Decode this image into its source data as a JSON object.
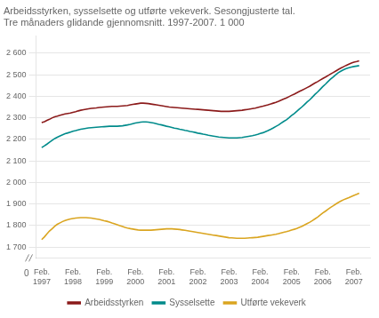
{
  "chart_data": {
    "type": "line",
    "title": [
      "Arbeidsstyrken, sysselsette og utførte vekeverk. Sesongjusterte tal.",
      "Tre månaders glidande gjennomsnitt. 1997-2007. 1 000"
    ],
    "annotations": [
      "0"
    ],
    "x": [
      1997.08,
      1997.17,
      1997.25,
      1997.33,
      1997.42,
      1997.5,
      1997.58,
      1997.67,
      1997.75,
      1997.83,
      1997.92,
      1998.0,
      1998.08,
      1998.17,
      1998.25,
      1998.33,
      1998.42,
      1998.5,
      1998.58,
      1998.67,
      1998.75,
      1998.83,
      1998.92,
      1999.0,
      1999.08,
      1999.17,
      1999.25,
      1999.33,
      1999.42,
      1999.5,
      1999.58,
      1999.67,
      1999.75,
      1999.83,
      1999.92,
      2000.0,
      2000.08,
      2000.17,
      2000.25,
      2000.33,
      2000.42,
      2000.5,
      2000.58,
      2000.67,
      2000.75,
      2000.83,
      2000.92,
      2001.0,
      2001.08,
      2001.17,
      2001.25,
      2001.33,
      2001.42,
      2001.5,
      2001.58,
      2001.67,
      2001.75,
      2001.83,
      2001.92,
      2002.0,
      2002.08,
      2002.17,
      2002.25,
      2002.33,
      2002.42,
      2002.5,
      2002.58,
      2002.67,
      2002.75,
      2002.83,
      2002.92,
      2003.0,
      2003.08,
      2003.17,
      2003.25,
      2003.33,
      2003.42,
      2003.5,
      2003.58,
      2003.67,
      2003.75,
      2003.83,
      2003.92,
      2004.0,
      2004.08,
      2004.17,
      2004.25,
      2004.33,
      2004.42,
      2004.5,
      2004.58,
      2004.67,
      2004.75,
      2004.83,
      2004.92,
      2005.0,
      2005.08,
      2005.17,
      2005.25,
      2005.33,
      2005.42,
      2005.5,
      2005.58,
      2005.67,
      2005.75,
      2005.83,
      2005.92,
      2006.0,
      2006.08,
      2006.17,
      2006.25,
      2006.33,
      2006.42,
      2006.5,
      2006.58,
      2006.67,
      2006.75,
      2006.83,
      2006.92,
      2007.0,
      2007.08,
      2007.17,
      2007.25
    ],
    "series": [
      {
        "name": "Arbeidsstyrken",
        "color": "#8B1A1A",
        "values": [
          2278,
          2282,
          2288,
          2293,
          2300,
          2305,
          2308,
          2312,
          2315,
          2318,
          2320,
          2322,
          2325,
          2328,
          2332,
          2335,
          2338,
          2340,
          2342,
          2344,
          2345,
          2346,
          2348,
          2349,
          2350,
          2351,
          2352,
          2353,
          2353,
          2353,
          2354,
          2355,
          2356,
          2357,
          2360,
          2362,
          2364,
          2366,
          2368,
          2368,
          2367,
          2366,
          2364,
          2362,
          2360,
          2358,
          2356,
          2354,
          2352,
          2350,
          2349,
          2348,
          2347,
          2346,
          2345,
          2344,
          2343,
          2342,
          2341,
          2340,
          2339,
          2338,
          2337,
          2336,
          2335,
          2334,
          2333,
          2332,
          2331,
          2330,
          2330,
          2330,
          2330,
          2331,
          2332,
          2333,
          2334,
          2335,
          2337,
          2339,
          2341,
          2343,
          2345,
          2348,
          2351,
          2354,
          2357,
          2360,
          2364,
          2368,
          2372,
          2377,
          2382,
          2387,
          2392,
          2398,
          2404,
          2410,
          2416,
          2422,
          2428,
          2434,
          2440,
          2447,
          2454,
          2461,
          2468,
          2475,
          2482,
          2489,
          2496,
          2503,
          2510,
          2517,
          2524,
          2531,
          2537,
          2543,
          2549,
          2554,
          2558,
          2561,
          2564
        ]
      },
      {
        "name": "Sysselsette",
        "color": "#008B8B",
        "values": [
          2162,
          2170,
          2178,
          2187,
          2196,
          2204,
          2210,
          2216,
          2221,
          2226,
          2230,
          2234,
          2238,
          2241,
          2244,
          2247,
          2249,
          2251,
          2253,
          2254,
          2255,
          2256,
          2257,
          2258,
          2259,
          2260,
          2261,
          2261,
          2261,
          2261,
          2262,
          2263,
          2265,
          2267,
          2270,
          2273,
          2276,
          2278,
          2280,
          2281,
          2281,
          2280,
          2278,
          2276,
          2273,
          2270,
          2267,
          2264,
          2261,
          2258,
          2255,
          2252,
          2250,
          2247,
          2245,
          2242,
          2240,
          2237,
          2235,
          2232,
          2229,
          2227,
          2224,
          2222,
          2219,
          2217,
          2215,
          2213,
          2211,
          2210,
          2209,
          2208,
          2207,
          2207,
          2207,
          2207,
          2208,
          2209,
          2211,
          2213,
          2215,
          2217,
          2220,
          2223,
          2227,
          2231,
          2236,
          2241,
          2247,
          2253,
          2260,
          2267,
          2275,
          2283,
          2291,
          2300,
          2310,
          2320,
          2330,
          2340,
          2351,
          2362,
          2373,
          2384,
          2396,
          2408,
          2420,
          2432,
          2444,
          2456,
          2468,
          2479,
          2490,
          2500,
          2509,
          2517,
          2523,
          2528,
          2532,
          2535,
          2538,
          2540,
          2542
        ]
      },
      {
        "name": "Utførte vekeverk",
        "color": "#DAA520",
        "values": [
          1735,
          1748,
          1762,
          1775,
          1786,
          1797,
          1806,
          1813,
          1819,
          1824,
          1828,
          1831,
          1833,
          1835,
          1836,
          1837,
          1837,
          1837,
          1836,
          1835,
          1833,
          1831,
          1829,
          1826,
          1823,
          1820,
          1816,
          1812,
          1808,
          1804,
          1800,
          1796,
          1792,
          1789,
          1786,
          1784,
          1782,
          1780,
          1779,
          1779,
          1779,
          1779,
          1779,
          1780,
          1781,
          1782,
          1783,
          1784,
          1785,
          1785,
          1785,
          1784,
          1783,
          1782,
          1780,
          1778,
          1776,
          1774,
          1772,
          1770,
          1768,
          1766,
          1764,
          1762,
          1760,
          1758,
          1756,
          1754,
          1752,
          1750,
          1748,
          1746,
          1744,
          1743,
          1742,
          1741,
          1741,
          1741,
          1741,
          1742,
          1743,
          1744,
          1745,
          1746,
          1748,
          1750,
          1752,
          1754,
          1756,
          1758,
          1760,
          1763,
          1766,
          1769,
          1772,
          1775,
          1779,
          1783,
          1787,
          1792,
          1797,
          1803,
          1809,
          1816,
          1823,
          1831,
          1840,
          1849,
          1858,
          1867,
          1876,
          1884,
          1892,
          1900,
          1907,
          1914,
          1920,
          1925,
          1930,
          1935,
          1940,
          1945,
          1950
        ]
      }
    ],
    "xlim": [
      1996.9,
      2007.6
    ],
    "xticks": [
      {
        "value": 1997.0833333333333,
        "label": "Feb.\n1997"
      },
      {
        "value": 1998.0833333333333,
        "label": "Feb.\n1998"
      },
      {
        "value": 1999.0833333333333,
        "label": "Feb.\n1999"
      },
      {
        "value": 2000.0833333333333,
        "label": "Feb.\n2000"
      },
      {
        "value": 2001.0833333333333,
        "label": "Feb.\n2001"
      },
      {
        "value": 2002.0833333333333,
        "label": "Feb.\n2002"
      },
      {
        "value": 2003.0833333333333,
        "label": "Feb.\n2003"
      },
      {
        "value": 2004.0833333333333,
        "label": "Feb.\n2004"
      },
      {
        "value": 2005.0833333333333,
        "label": "Feb.\n2005"
      },
      {
        "value": 2006.0833333333333,
        "label": "Feb.\n2006"
      },
      {
        "value": 2007.0833333333333,
        "label": "Feb.\n2007"
      }
    ],
    "ylim": [
      1650,
      2680
    ],
    "yticks": [
      {
        "value": 1700,
        "label": "1 700"
      },
      {
        "value": 1800,
        "label": "1 800"
      },
      {
        "value": 1900,
        "label": "1 900"
      },
      {
        "value": 2000,
        "label": "2 000"
      },
      {
        "value": 2100,
        "label": "2 100"
      },
      {
        "value": 2200,
        "label": "2 200"
      },
      {
        "value": 2300,
        "label": "2 300"
      },
      {
        "value": 2400,
        "label": "2 400"
      },
      {
        "value": 2500,
        "label": "2 500"
      },
      {
        "value": 2600,
        "label": "2 600"
      }
    ],
    "grid": "y",
    "legend": "bottom"
  }
}
